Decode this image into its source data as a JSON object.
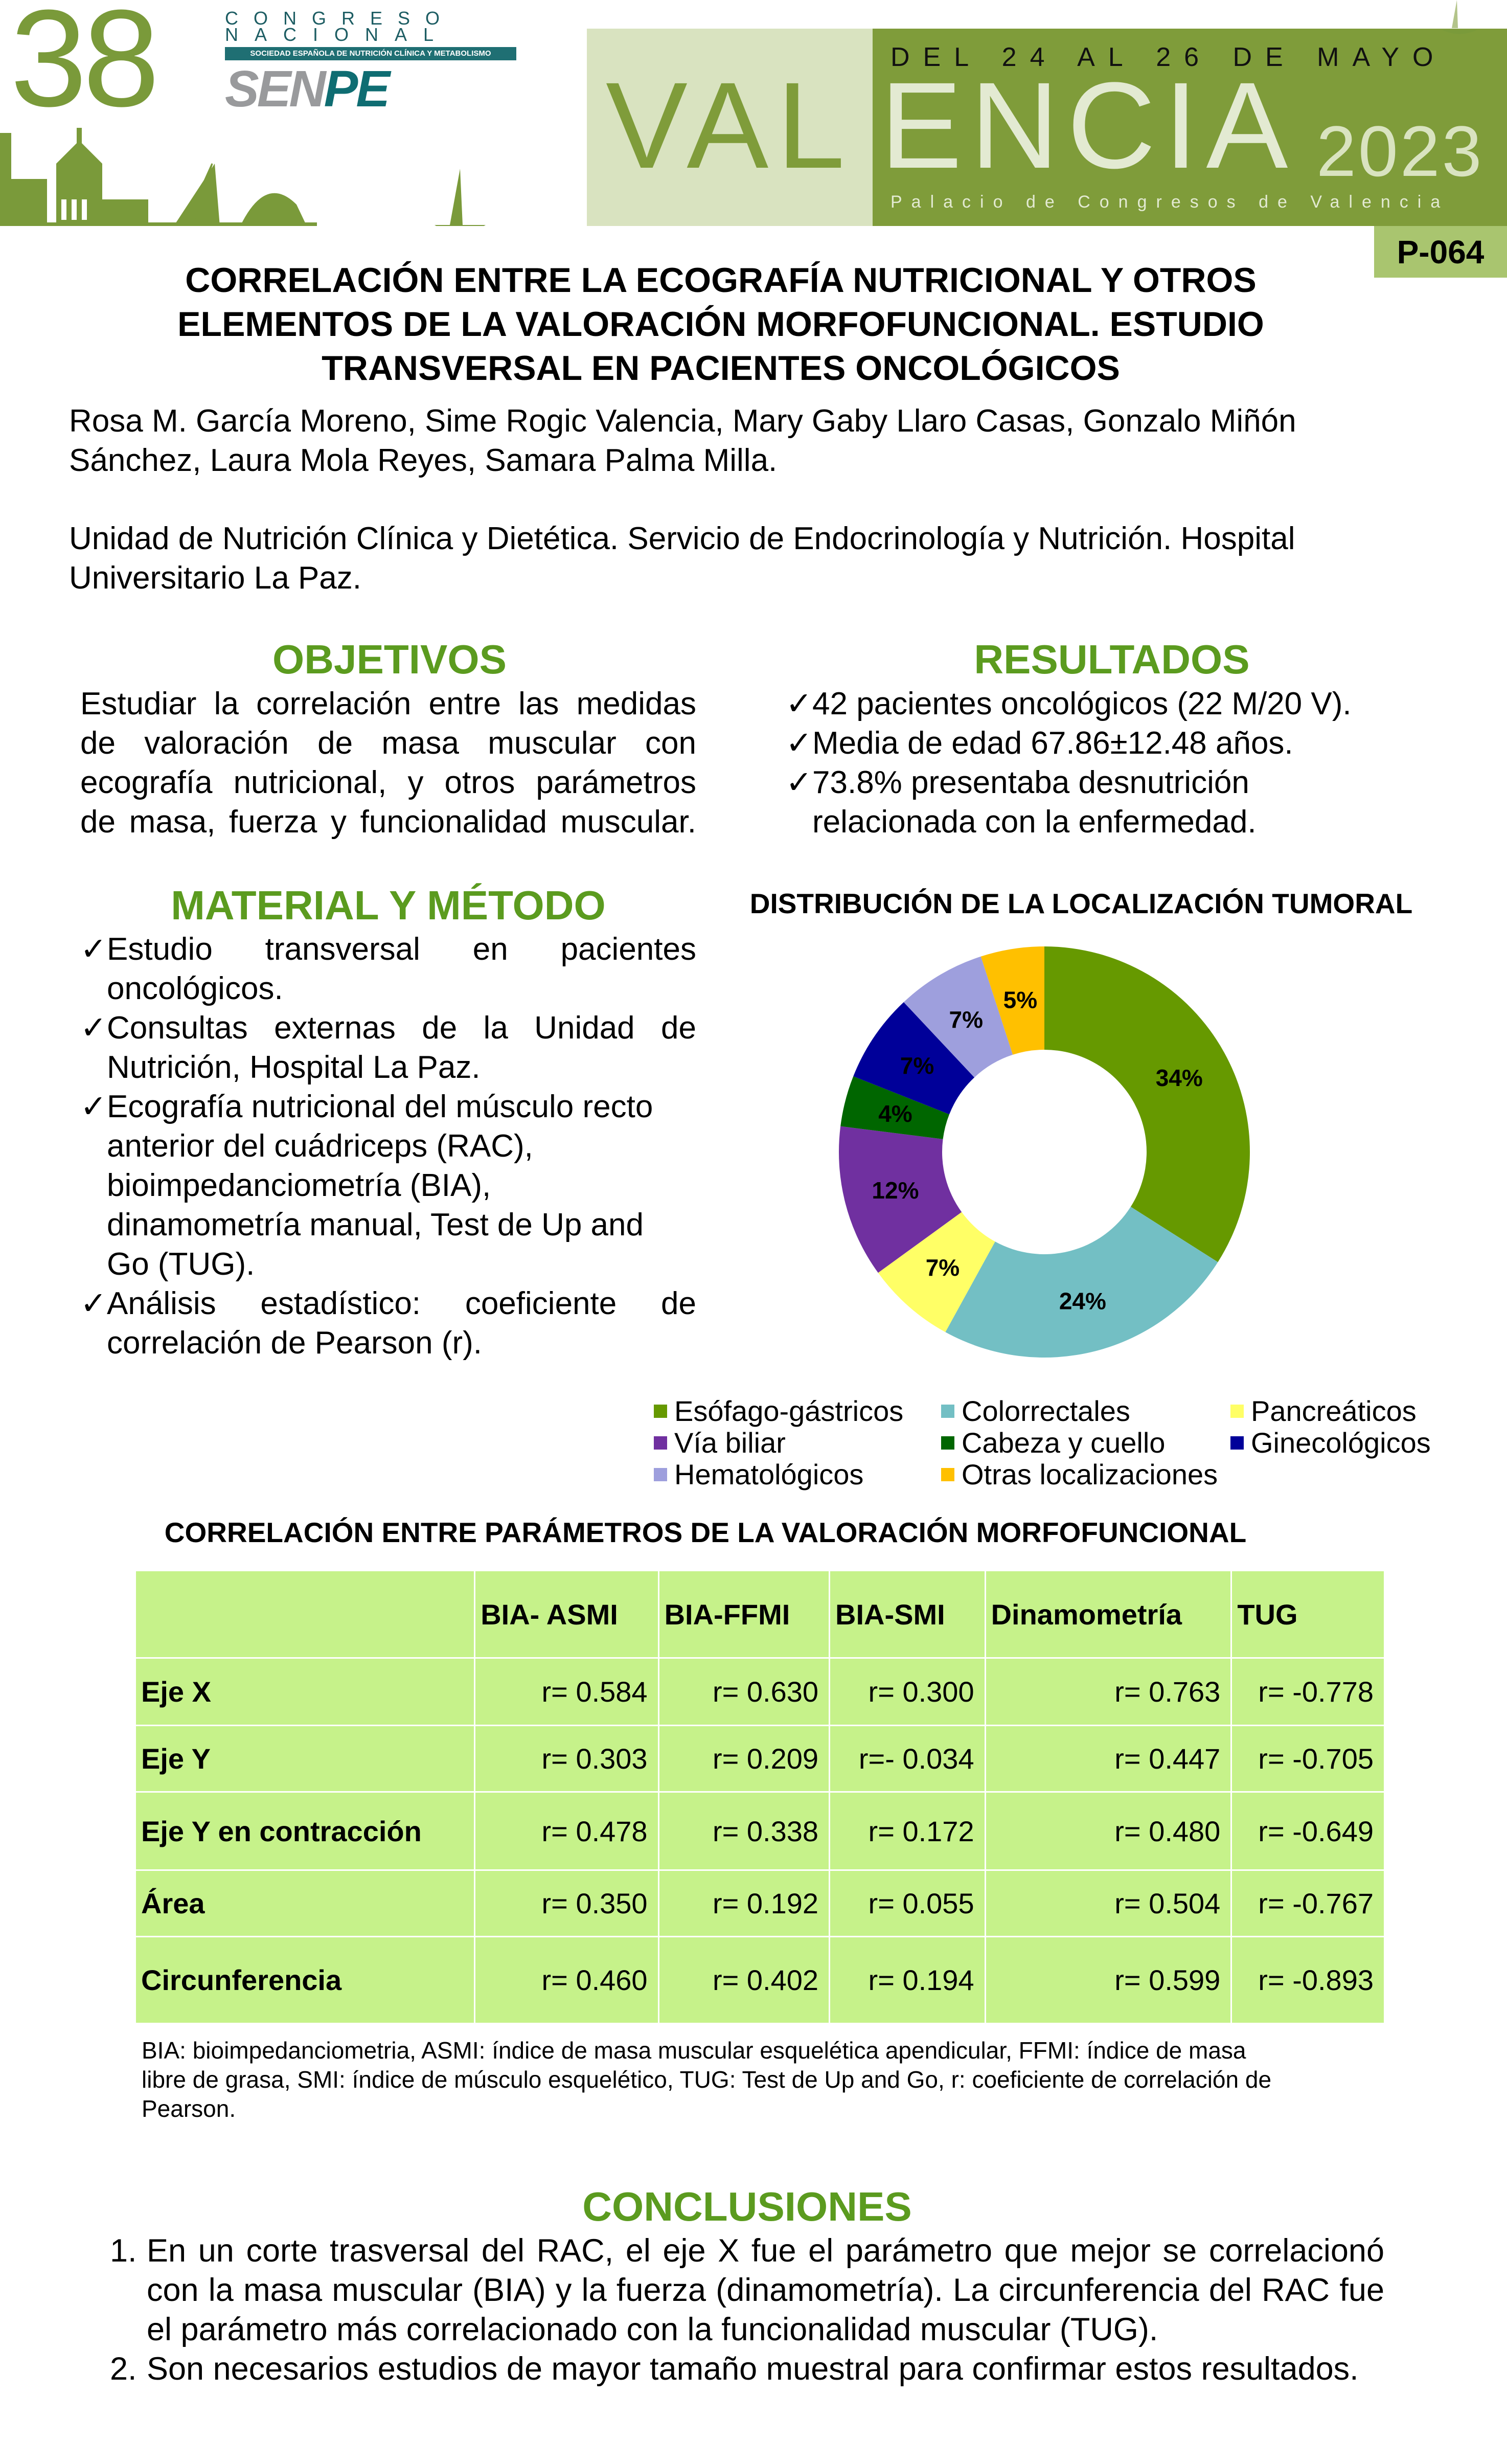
{
  "header": {
    "logo_number": "38",
    "logo_line1": "CONGRESO",
    "logo_line2": "NACIONAL",
    "logo_band": "SOCIEDAD ESPAÑOLA DE NUTRICIÓN CLÍNICA Y METABOLISMO",
    "logo_senpe_a": "SEN",
    "logo_senpe_b": "PE",
    "dates": "DEL 24 AL 26 DE MAYO",
    "city_a": "VAL",
    "city_b": "ENCIA",
    "year": "2023",
    "venue": "Palacio de Congresos de Valencia",
    "poster_code": "P-064"
  },
  "title": [
    "CORRELACIÓN ENTRE LA ECOGRAFÍA NUTRICIONAL Y OTROS",
    "ELEMENTOS DE LA VALORACIÓN MORFOFUNCIONAL. ESTUDIO",
    "TRANSVERSAL EN PACIENTES ONCOLÓGICOS"
  ],
  "authors": [
    "Rosa M. García Moreno,  Sime Rogic Valencia, Mary Gaby Llaro Casas, Gonzalo Miñón",
    "Sánchez, Laura Mola Reyes, Samara Palma Milla."
  ],
  "affiliation": [
    "Unidad de Nutrición Clínica y Dietética. Servicio de Endocrinología y Nutrición. Hospital",
    "Universitario La Paz."
  ],
  "objetivos": {
    "heading": "OBJETIVOS",
    "lines": [
      "Estudiar la correlación entre las medidas",
      "de valoración de masa muscular con",
      "ecografía nutricional, y otros parámetros",
      "de masa, fuerza y funcionalidad muscular."
    ]
  },
  "resultados": {
    "heading": "RESULTADOS",
    "check": "✓",
    "items": [
      [
        "42 pacientes oncológicos (22 M/20 V)."
      ],
      [
        "Media de edad  67.86±12.48 años."
      ],
      [
        "73.8% presentaba desnutrición",
        "relacionada con la enfermedad."
      ]
    ]
  },
  "metodo": {
    "heading": "MATERIAL Y MÉTODO",
    "check": "✓",
    "items": [
      {
        "lines": [
          "Estudio transversal en pacientes",
          "oncológicos."
        ],
        "justify_first": true
      },
      {
        "lines": [
          "Consultas externas de la Unidad de",
          "Nutrición, Hospital La Paz."
        ],
        "justify_first": true
      },
      {
        "lines": [
          "Ecografía nutricional del músculo recto",
          "anterior del cuádriceps (RAC),",
          "bioimpedanciometría (BIA),",
          "dinamometría manual, Test de Up and",
          "Go (TUG)."
        ],
        "justify_first": false
      },
      {
        "lines": [
          "Análisis estadístico: coeficiente de",
          "correlación de Pearson (r)."
        ],
        "justify_first": true
      }
    ]
  },
  "chart_data": {
    "type": "pie",
    "variant": "donut",
    "title": "DISTRIBUCIÓN DE LA LOCALIZACIÓN TUMORAL",
    "categories": [
      "Esófago-gástricos",
      "Colorrectales",
      "Pancreáticos",
      "Vía biliar",
      "Cabeza y cuello",
      "Ginecológicos",
      "Hematológicos",
      "Otras localizaciones"
    ],
    "values": [
      34,
      24,
      7,
      12,
      4,
      7,
      7,
      5
    ],
    "labels": [
      "34%",
      "24%",
      "7%",
      "12%",
      "4%",
      "7%",
      "7%",
      "5%"
    ],
    "colors": [
      "#669900",
      "#73bfc4",
      "#ffff66",
      "#7030a0",
      "#006600",
      "#000099",
      "#9e9fdd",
      "#ffc000"
    ],
    "legend_position": "bottom",
    "slice_order_clockwise_from_top": [
      0,
      1,
      2,
      3,
      4,
      5,
      6,
      7
    ]
  },
  "table": {
    "title": "CORRELACIÓN ENTRE PARÁMETROS DE LA VALORACIÓN MORFOFUNCIONAL",
    "columns": [
      "",
      "BIA- ASMI",
      "BIA-FFMI",
      "BIA-SMI",
      "Dinamometría",
      "TUG"
    ],
    "rows": [
      {
        "label": "Eje X",
        "values": [
          "r= 0.584",
          "r= 0.630",
          "r= 0.300",
          "r= 0.763",
          "r= -0.778"
        ]
      },
      {
        "label": "Eje Y",
        "values": [
          "r= 0.303",
          "r= 0.209",
          "r=- 0.034",
          "r= 0.447",
          "r= -0.705"
        ]
      },
      {
        "label": "Eje Y en contracción",
        "values": [
          "r= 0.478",
          "r= 0.338",
          "r= 0.172",
          "r= 0.480",
          "r= -0.649"
        ]
      },
      {
        "label": "Área",
        "values": [
          "r= 0.350",
          "r= 0.192",
          "r= 0.055",
          "r= 0.504",
          "r= -0.767"
        ]
      },
      {
        "label": "Circunferencia",
        "values": [
          "r= 0.460",
          "r= 0.402",
          "r= 0.194",
          "r= 0.599",
          "r= -0.893"
        ]
      }
    ],
    "footnote": [
      "BIA: bioimpedanciometria, ASMI: índice de  masa muscular esquelética apendicular, FFMI: índice de masa",
      "libre de grasa, SMI: índice de músculo esquelético, TUG: Test de Up and Go, r: coeficiente de correlación de",
      "Pearson."
    ]
  },
  "conclusiones": {
    "heading": "CONCLUSIONES",
    "items": [
      {
        "num": "1.",
        "text": "En un corte trasversal del RAC, el eje X fue el parámetro que mejor se correlacionó con la masa muscular (BIA) y la fuerza (dinamometría). La circunferencia del RAC fue el parámetro más correlacionado con la funcionalidad muscular (TUG)."
      },
      {
        "num": "2.",
        "text": "Son necesarios estudios de mayor tamaño muestral para confirmar estos resultados."
      }
    ]
  },
  "colors": {
    "header_green": "#7f9c3a",
    "header_light": "#d9e3c0",
    "heading_green": "#5b9b1f",
    "table_bg": "#c6f28a",
    "senpe_teal": "#0f6d72"
  }
}
